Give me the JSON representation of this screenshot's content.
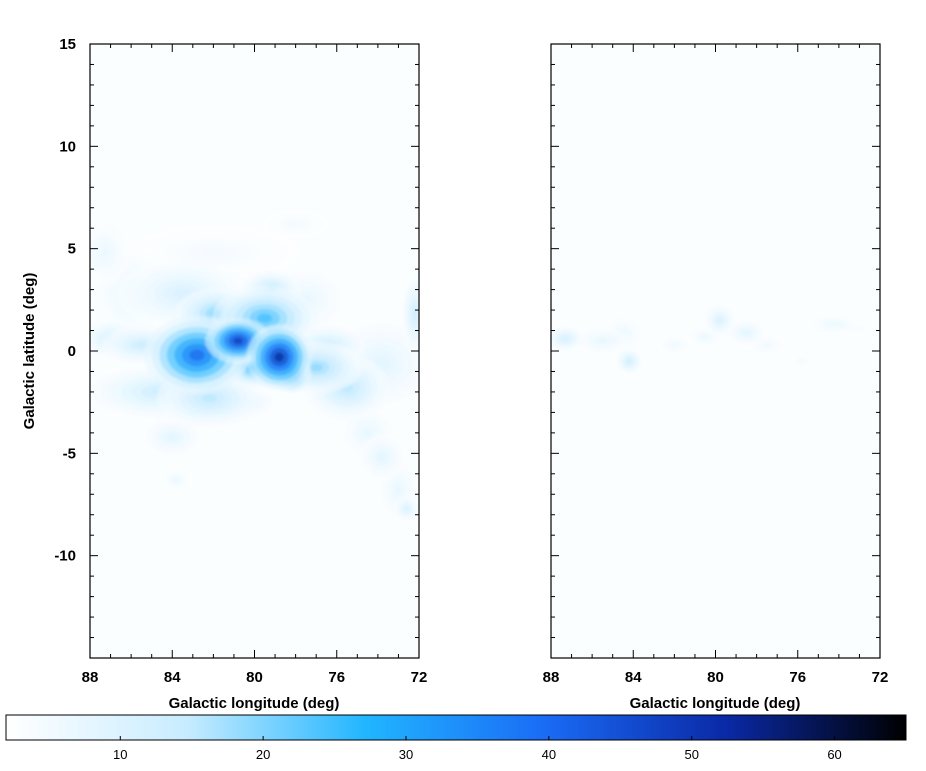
{
  "chart_data": [
    {
      "type": "heatmap",
      "panel": "left",
      "xlabel": "Galactic longitude (deg)",
      "ylabel": "Galactic latitude (deg)",
      "xlim": [
        88,
        72
      ],
      "ylim": [
        -15,
        15
      ],
      "x_ticks": [
        88,
        84,
        80,
        76,
        72
      ],
      "y_ticks": [
        15,
        10,
        5,
        0,
        -5,
        -10
      ],
      "grid": false,
      "blobs": [
        {
          "l": 82.8,
          "b": -0.2,
          "sl": 1.6,
          "sb": 1.2,
          "v": 42
        },
        {
          "l": 80.8,
          "b": 0.5,
          "sl": 1.0,
          "sb": 0.7,
          "v": 52
        },
        {
          "l": 78.8,
          "b": -0.3,
          "sl": 1.0,
          "sb": 1.0,
          "v": 55
        },
        {
          "l": 78.2,
          "b": -1.1,
          "sl": 0.6,
          "sb": 0.6,
          "v": 35
        },
        {
          "l": 82.9,
          "b": -1.0,
          "sl": 0.6,
          "sb": 0.6,
          "v": 30
        },
        {
          "l": 79.5,
          "b": 1.6,
          "sl": 1.6,
          "sb": 1.0,
          "v": 26
        },
        {
          "l": 81.8,
          "b": 1.8,
          "sl": 1.3,
          "sb": 0.8,
          "v": 22
        },
        {
          "l": 79.2,
          "b": 3.0,
          "sl": 0.9,
          "sb": 0.6,
          "v": 16
        },
        {
          "l": 83.5,
          "b": 2.8,
          "sl": 2.0,
          "sb": 1.1,
          "v": 11
        },
        {
          "l": 85.5,
          "b": 0.3,
          "sl": 1.2,
          "sb": 0.6,
          "v": 14
        },
        {
          "l": 87.0,
          "b": 0.6,
          "sl": 0.9,
          "sb": 0.6,
          "v": 12
        },
        {
          "l": 86.0,
          "b": 2.8,
          "sl": 1.4,
          "sb": 1.6,
          "v": 7
        },
        {
          "l": 87.3,
          "b": 4.8,
          "sl": 0.8,
          "sb": 1.0,
          "v": 7
        },
        {
          "l": 84.5,
          "b": -2.0,
          "sl": 2.2,
          "sb": 0.8,
          "v": 14
        },
        {
          "l": 82.2,
          "b": -2.3,
          "sl": 1.6,
          "sb": 0.9,
          "v": 16
        },
        {
          "l": 80.5,
          "b": -2.5,
          "sl": 1.0,
          "sb": 0.5,
          "v": 10
        },
        {
          "l": 77.0,
          "b": -0.8,
          "sl": 1.4,
          "sb": 0.8,
          "v": 20
        },
        {
          "l": 75.5,
          "b": -1.8,
          "sl": 1.3,
          "sb": 1.0,
          "v": 16
        },
        {
          "l": 76.5,
          "b": 0.3,
          "sl": 1.2,
          "sb": 0.6,
          "v": 14
        },
        {
          "l": 73.8,
          "b": -0.6,
          "sl": 1.6,
          "sb": 1.4,
          "v": 9
        },
        {
          "l": 72.2,
          "b": 1.8,
          "sl": 0.4,
          "sb": 1.2,
          "v": 13
        },
        {
          "l": 77.5,
          "b": 2.5,
          "sl": 1.2,
          "sb": 1.0,
          "v": 8
        },
        {
          "l": 74.5,
          "b": -4.0,
          "sl": 0.8,
          "sb": 0.8,
          "v": 8
        },
        {
          "l": 73.8,
          "b": -5.2,
          "sl": 0.7,
          "sb": 0.7,
          "v": 9
        },
        {
          "l": 73.0,
          "b": -6.8,
          "sl": 0.6,
          "sb": 0.9,
          "v": 8
        },
        {
          "l": 72.6,
          "b": -7.7,
          "sl": 0.4,
          "sb": 0.4,
          "v": 11
        },
        {
          "l": 84.0,
          "b": -4.2,
          "sl": 0.9,
          "sb": 0.6,
          "v": 9
        },
        {
          "l": 83.8,
          "b": -6.3,
          "sl": 0.4,
          "sb": 0.3,
          "v": 7
        },
        {
          "l": 82.0,
          "b": 4.8,
          "sl": 2.6,
          "sb": 0.8,
          "v": 5
        },
        {
          "l": 78.0,
          "b": 6.2,
          "sl": 1.0,
          "sb": 0.4,
          "v": 5
        },
        {
          "l": 80.0,
          "b": -0.8,
          "sl": 1.0,
          "sb": 0.6,
          "v": 28
        }
      ]
    },
    {
      "type": "heatmap",
      "panel": "right",
      "xlabel": "Galactic longitude (deg)",
      "ylabel": "",
      "xlim": [
        88,
        72
      ],
      "ylim": [
        -15,
        15
      ],
      "x_ticks": [
        88,
        84,
        80,
        76,
        72
      ],
      "y_ticks": [],
      "grid": false,
      "blobs": [
        {
          "l": 87.3,
          "b": 0.6,
          "sl": 0.6,
          "sb": 0.4,
          "v": 12
        },
        {
          "l": 85.5,
          "b": 0.5,
          "sl": 0.8,
          "sb": 0.4,
          "v": 8
        },
        {
          "l": 84.2,
          "b": -0.5,
          "sl": 0.4,
          "sb": 0.4,
          "v": 13
        },
        {
          "l": 84.5,
          "b": 0.8,
          "sl": 0.6,
          "sb": 0.6,
          "v": 7
        },
        {
          "l": 82.0,
          "b": 0.3,
          "sl": 0.5,
          "sb": 0.3,
          "v": 6
        },
        {
          "l": 79.8,
          "b": 1.5,
          "sl": 0.5,
          "sb": 0.5,
          "v": 11
        },
        {
          "l": 78.5,
          "b": 0.9,
          "sl": 0.6,
          "sb": 0.4,
          "v": 9
        },
        {
          "l": 80.5,
          "b": 0.7,
          "sl": 0.5,
          "sb": 0.3,
          "v": 7
        },
        {
          "l": 77.5,
          "b": 0.3,
          "sl": 0.6,
          "sb": 0.3,
          "v": 6
        },
        {
          "l": 74.2,
          "b": 1.3,
          "sl": 0.8,
          "sb": 0.3,
          "v": 7
        },
        {
          "l": 73.2,
          "b": 1.1,
          "sl": 0.5,
          "sb": 0.2,
          "v": 5
        },
        {
          "l": 75.8,
          "b": -0.5,
          "sl": 0.3,
          "sb": 0.2,
          "v": 5
        }
      ]
    }
  ],
  "colorbar": {
    "vmin": 2,
    "vmax": 65,
    "ticks": [
      10,
      20,
      30,
      40,
      50,
      60
    ],
    "stops": [
      "#ffffff",
      "#c8ecff",
      "#21b5ff",
      "#1a6bf5",
      "#0a29a6",
      "#000000"
    ]
  }
}
